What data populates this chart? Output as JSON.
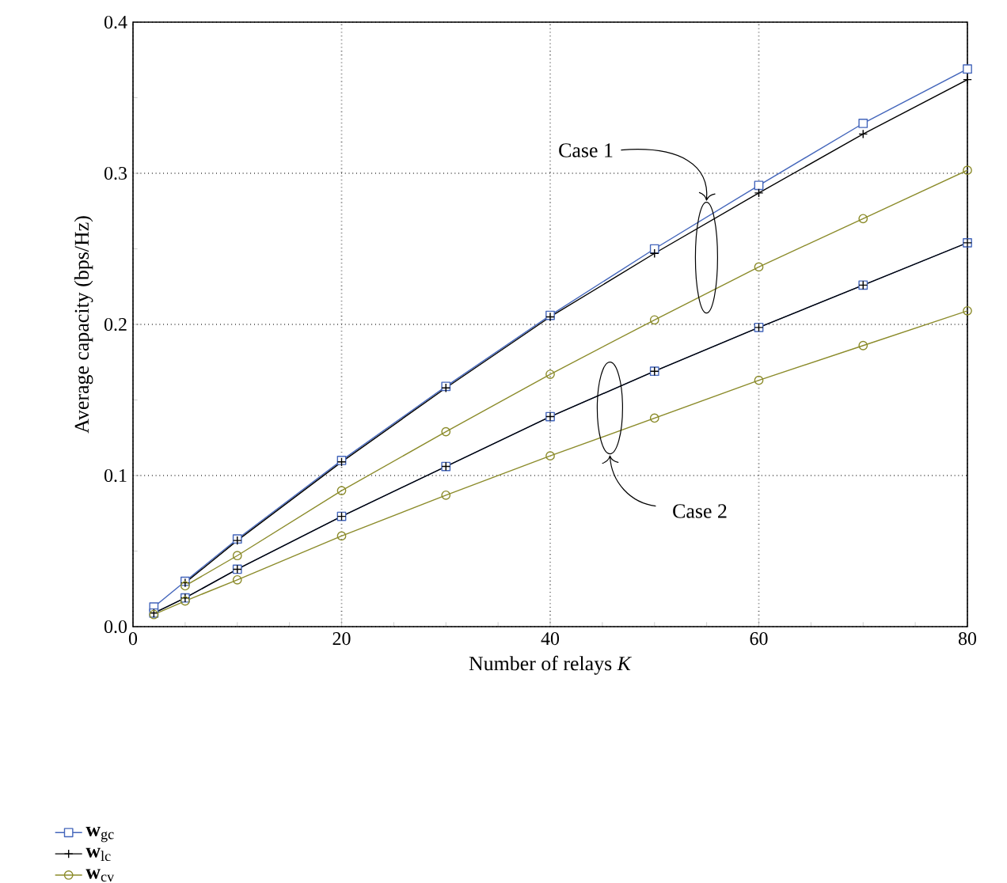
{
  "chart_data": {
    "type": "line",
    "xlabel": "Number of relays *K*",
    "ylabel": "Average capacity (bps/Hz)",
    "xlim": [
      0,
      80
    ],
    "ylim": [
      0,
      0.4
    ],
    "xticks": [
      0,
      20,
      40,
      60,
      80
    ],
    "yticks": [
      {
        "value": 0,
        "label": "0.0"
      },
      0.1,
      0.2,
      0.3,
      0.4
    ],
    "grid": true,
    "legend": "bottom left",
    "line_style": "solid",
    "x": [
      2,
      5,
      10,
      20,
      30,
      40,
      50,
      60,
      70,
      80
    ],
    "series": [
      {
        "name": "**w**$_{gc}$",
        "color": "#4466bb",
        "marker": "square",
        "values": [
          0.013,
          0.03,
          0.058,
          0.11,
          0.159,
          0.206,
          0.25,
          0.292,
          0.333,
          0.369
        ]
      },
      {
        "name": "**w**$_{lc}$",
        "color": "#000000",
        "marker": "cross",
        "values": [
          null,
          0.029,
          0.057,
          0.109,
          0.158,
          0.205,
          0.247,
          0.287,
          0.326,
          0.362
        ]
      },
      {
        "name": "**w**$_{cv}$",
        "color": "#8b8b2a",
        "marker": "circle",
        "values": [
          null,
          0.027,
          0.047,
          0.09,
          0.129,
          0.167,
          0.203,
          0.238,
          0.27,
          0.302
        ]
      },
      {
        "color": "#4466bb",
        "marker": "square",
        "values": [
          0.009,
          0.019,
          0.038,
          0.073,
          0.106,
          0.139,
          0.169,
          0.198,
          0.226,
          0.254
        ]
      },
      {
        "color": "#000000",
        "marker": "cross",
        "values": [
          0.009,
          0.019,
          0.038,
          0.073,
          0.106,
          0.139,
          0.169,
          0.198,
          0.226,
          0.254
        ]
      },
      {
        "color": "#8b8b2a",
        "marker": "circle",
        "values": [
          0.008,
          0.017,
          0.031,
          0.06,
          0.087,
          0.113,
          0.138,
          0.163,
          0.186,
          0.209
        ]
      }
    ],
    "annotations": [
      "Case 1",
      "Case 2"
    ]
  }
}
